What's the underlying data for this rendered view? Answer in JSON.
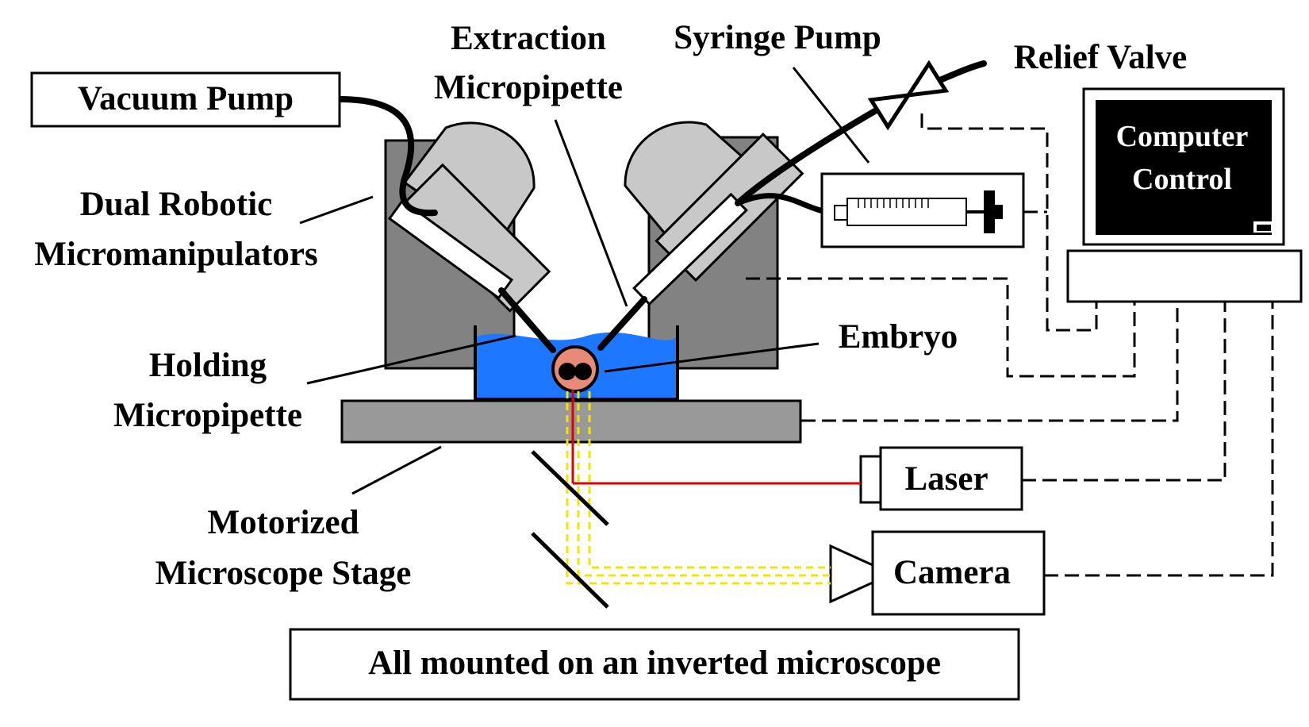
{
  "labels": {
    "vacuum_pump": "Vacuum Pump",
    "extraction_line1": "Extraction",
    "extraction_line2": "Micropipette",
    "syringe_pump": "Syringe Pump",
    "relief_valve": "Relief Valve",
    "computer_line1": "Computer",
    "computer_line2": "Control",
    "dual_line1": "Dual Robotic",
    "dual_line2": "Micromanipulators",
    "holding_line1": "Holding",
    "holding_line2": "Micropipette",
    "embryo": "Embryo",
    "laser": "Laser",
    "camera": "Camera",
    "stage_line1": "Motorized",
    "stage_line2": "Microscope Stage",
    "footer": "All mounted on an inverted microscope"
  },
  "colors": {
    "manipulator_body": "#828282",
    "manipulator_head": "#c8c8c8",
    "medium": "#1e78ff",
    "laser_beam": "#e00000",
    "imaging_path": "#f2e600",
    "embryo": "#e88a78",
    "computer_screen": "#000000"
  }
}
